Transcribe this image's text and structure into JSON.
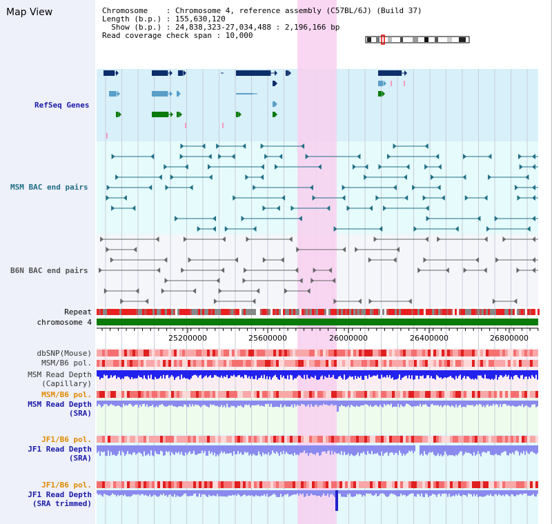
{
  "page_title": "Map View",
  "header": {
    "chromosome_line": "Chromosome    : Chromosome 4, reference assembly (C57BL/6J) (Build 37)",
    "length_line": "Length (b.p.) : 155,630,120",
    "show_line": "Show (b.p.) : 24,838,323-27,034,488 : 2,196,166 bp",
    "coverage_line": "Read coverage check span : 10,000"
  },
  "tracks": {
    "refseq": "RefSeq Genes",
    "msm_bac": "MSM BAC end pairs",
    "b6n_bac": "B6N BAC end pairs",
    "repeat": "Repeat",
    "chromosome": "chromosome 4",
    "dbsnp": "dbSNP(Mouse)",
    "msm_b6_pol": "MSM/B6 pol.",
    "msm_depth_cap_1": "MSM Read Depth",
    "msm_depth_cap_2": "(Capillary)",
    "msm_b6_pol_2": "MSM/B6 pol.",
    "msm_depth_sra_1": "MSM Read Depth",
    "msm_depth_sra_2": "(SRA)",
    "jf1_b6_pol": "JF1/B6 pol.",
    "jf1_depth_sra_1": "JF1 Read Depth",
    "jf1_depth_sra_2": "(SRA)",
    "jf1_b6_pol_2": "JF1/B6 pol.",
    "jf1_depth_trim_1": "JF1 Read Depth",
    "jf1_depth_trim_2": "(SRA trimmed)"
  },
  "axis": {
    "ticks": [
      "25200000",
      "25600000",
      "26000000",
      "26400000",
      "26800000"
    ]
  },
  "colors": {
    "highlight": "#f8d0f0",
    "refseq_navy": "#0d2d6b",
    "refseq_lightblue": "#5a9ec8",
    "refseq_green": "#0a7a0a",
    "bac_teal": "#1f6e85",
    "bac_gray": "#666666",
    "chrom_green": "#0a7a0a",
    "depth_blue": "#2222ee",
    "depth_lightblue": "#8a8aee",
    "pol_red": "#ee3333"
  }
}
